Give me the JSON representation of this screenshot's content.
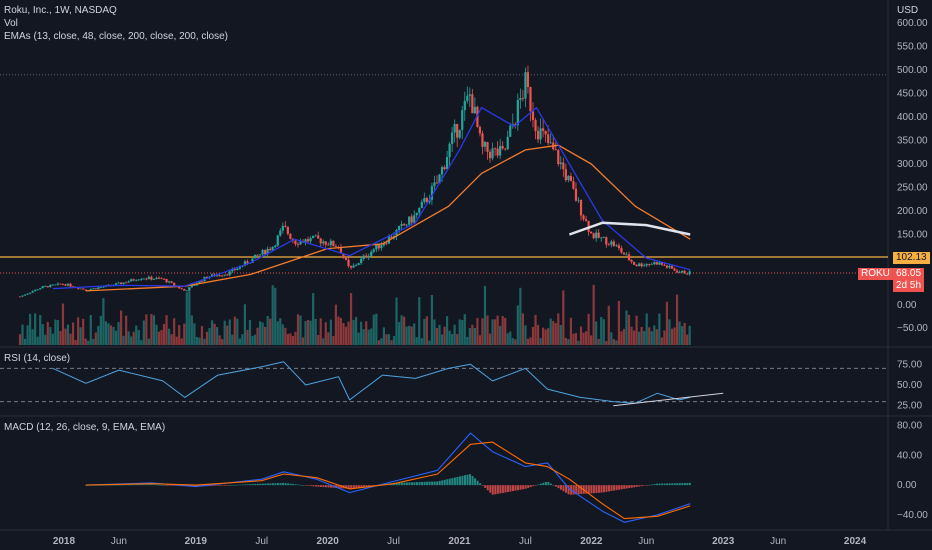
{
  "header": {
    "title": "Roku, Inc., 1W, NASDAQ",
    "volume_label": "Vol",
    "ema_label": "EMAs (13, close, 48, close, 200, close, 200, close)",
    "currency": "USD"
  },
  "rsi_label": "RSI (14, close)",
  "macd_label": "MACD (12, 26, close, 9, EMA, EMA)",
  "price_tags": {
    "level": "102.13",
    "symbol": "ROKU",
    "last": "68.05",
    "countdown": "2d 5h"
  },
  "colors": {
    "background": "#131722",
    "up": "#26a69a",
    "down": "#ef5350",
    "ema_fast": "#2a39e8",
    "ema_slow": "#f57c2c",
    "ema_long": "#e0e3eb",
    "horizontal_line": "#f5b041",
    "rsi": "#4fa3e0",
    "macd": "#2962ff",
    "signal": "#ff6d00"
  },
  "chart_data": [
    {
      "type": "candlestick",
      "pane": "price",
      "y_ticks": [
        600,
        550,
        500,
        450,
        400,
        350,
        300,
        250,
        200,
        150,
        100,
        50
      ],
      "y_tick_labels": [
        "600.00",
        "550.00",
        "500.00",
        "450.00",
        "400.00",
        "350.00",
        "300.00",
        "250.00",
        "200.00",
        "150.00",
        "100.00",
        "50.00"
      ],
      "ylim": [
        20,
        620
      ],
      "x_labels": [
        "2018",
        "Jun",
        "2019",
        "Jul",
        "2020",
        "Jul",
        "2021",
        "Jul",
        "2022",
        "Jun",
        "2023",
        "Jun",
        "2024"
      ],
      "x_label_dates": [
        "2018-01",
        "2018-06",
        "2019-01",
        "2019-07",
        "2020-01",
        "2020-07",
        "2021-01",
        "2021-07",
        "2022-01",
        "2022-06",
        "2023-01",
        "2023-06",
        "2024-01"
      ],
      "x_range": [
        "2017-09",
        "2024-04"
      ],
      "series_close_points": [
        {
          "date": "2017-09",
          "value": 18
        },
        {
          "date": "2017-11",
          "value": 38
        },
        {
          "date": "2018-01",
          "value": 45
        },
        {
          "date": "2018-03",
          "value": 32
        },
        {
          "date": "2018-06",
          "value": 45
        },
        {
          "date": "2018-08",
          "value": 58
        },
        {
          "date": "2018-10",
          "value": 55
        },
        {
          "date": "2018-12",
          "value": 30
        },
        {
          "date": "2019-02",
          "value": 60
        },
        {
          "date": "2019-04",
          "value": 68
        },
        {
          "date": "2019-06",
          "value": 95
        },
        {
          "date": "2019-08",
          "value": 125
        },
        {
          "date": "2019-09",
          "value": 165
        },
        {
          "date": "2019-10",
          "value": 135
        },
        {
          "date": "2019-12",
          "value": 140
        },
        {
          "date": "2020-02",
          "value": 125
        },
        {
          "date": "2020-03",
          "value": 75
        },
        {
          "date": "2020-05",
          "value": 115
        },
        {
          "date": "2020-07",
          "value": 150
        },
        {
          "date": "2020-09",
          "value": 190
        },
        {
          "date": "2020-11",
          "value": 260
        },
        {
          "date": "2020-12",
          "value": 330
        },
        {
          "date": "2021-02",
          "value": 450
        },
        {
          "date": "2021-03",
          "value": 330
        },
        {
          "date": "2021-05",
          "value": 320
        },
        {
          "date": "2021-07",
          "value": 470
        },
        {
          "date": "2021-08",
          "value": 380
        },
        {
          "date": "2021-10",
          "value": 310
        },
        {
          "date": "2021-11",
          "value": 260
        },
        {
          "date": "2022-01",
          "value": 150
        },
        {
          "date": "2022-03",
          "value": 130
        },
        {
          "date": "2022-05",
          "value": 85
        },
        {
          "date": "2022-07",
          "value": 90
        },
        {
          "date": "2022-09",
          "value": 70
        },
        {
          "date": "2022-10",
          "value": 68.05
        }
      ],
      "ema_13_points": [
        {
          "date": "2017-12",
          "value": 35
        },
        {
          "date": "2018-06",
          "value": 42
        },
        {
          "date": "2018-12",
          "value": 40
        },
        {
          "date": "2019-06",
          "value": 90
        },
        {
          "date": "2019-10",
          "value": 140
        },
        {
          "date": "2020-03",
          "value": 105
        },
        {
          "date": "2020-09",
          "value": 175
        },
        {
          "date": "2021-01",
          "value": 330
        },
        {
          "date": "2021-03",
          "value": 420
        },
        {
          "date": "2021-06",
          "value": 380
        },
        {
          "date": "2021-08",
          "value": 420
        },
        {
          "date": "2021-11",
          "value": 300
        },
        {
          "date": "2022-02",
          "value": 180
        },
        {
          "date": "2022-06",
          "value": 100
        },
        {
          "date": "2022-10",
          "value": 75
        }
      ],
      "ema_48_points": [
        {
          "date": "2018-03",
          "value": 30
        },
        {
          "date": "2018-12",
          "value": 40
        },
        {
          "date": "2019-06",
          "value": 65
        },
        {
          "date": "2020-01",
          "value": 120
        },
        {
          "date": "2020-06",
          "value": 130
        },
        {
          "date": "2020-12",
          "value": 210
        },
        {
          "date": "2021-03",
          "value": 280
        },
        {
          "date": "2021-07",
          "value": 330
        },
        {
          "date": "2021-10",
          "value": 340
        },
        {
          "date": "2022-01",
          "value": 300
        },
        {
          "date": "2022-05",
          "value": 210
        },
        {
          "date": "2022-10",
          "value": 140
        }
      ],
      "ema_200_points": [
        {
          "date": "2021-11",
          "value": 150
        },
        {
          "date": "2022-02",
          "value": 175
        },
        {
          "date": "2022-06",
          "value": 170
        },
        {
          "date": "2022-10",
          "value": 150
        }
      ],
      "horizontal_level": 102.13,
      "last_price": 68.05
    },
    {
      "type": "bar",
      "pane": "volume",
      "y_tick_labels": [
        "0.00",
        "−50.00"
      ],
      "description_series": "weekly volume bars colored by candle direction"
    },
    {
      "type": "line",
      "pane": "rsi",
      "title": "RSI (14, close)",
      "y_tick_labels": [
        "75.00",
        "50.00",
        "25.00"
      ],
      "ylim": [
        15,
        85
      ],
      "bands": [
        70,
        30
      ],
      "points": [
        {
          "date": "2017-12",
          "value": 70
        },
        {
          "date": "2018-03",
          "value": 52
        },
        {
          "date": "2018-06",
          "value": 68
        },
        {
          "date": "2018-10",
          "value": 55
        },
        {
          "date": "2018-12",
          "value": 35
        },
        {
          "date": "2019-03",
          "value": 62
        },
        {
          "date": "2019-07",
          "value": 72
        },
        {
          "date": "2019-09",
          "value": 78
        },
        {
          "date": "2019-11",
          "value": 50
        },
        {
          "date": "2020-02",
          "value": 60
        },
        {
          "date": "2020-03",
          "value": 32
        },
        {
          "date": "2020-06",
          "value": 62
        },
        {
          "date": "2020-09",
          "value": 58
        },
        {
          "date": "2020-12",
          "value": 70
        },
        {
          "date": "2021-02",
          "value": 75
        },
        {
          "date": "2021-04",
          "value": 55
        },
        {
          "date": "2021-07",
          "value": 70
        },
        {
          "date": "2021-09",
          "value": 45
        },
        {
          "date": "2021-12",
          "value": 35
        },
        {
          "date": "2022-03",
          "value": 30
        },
        {
          "date": "2022-05",
          "value": 28
        },
        {
          "date": "2022-07",
          "value": 40
        },
        {
          "date": "2022-09",
          "value": 32
        },
        {
          "date": "2022-10",
          "value": 35
        }
      ],
      "trendline": [
        {
          "date": "2022-03",
          "value": 25
        },
        {
          "date": "2023-01",
          "value": 40
        }
      ]
    },
    {
      "type": "line",
      "pane": "macd",
      "title": "MACD (12, 26, close, 9, EMA, EMA)",
      "y_tick_labels": [
        "80.00",
        "40.00",
        "0.00",
        "−40.00"
      ],
      "ylim": [
        -55,
        85
      ],
      "macd_points": [
        {
          "date": "2018-03",
          "value": 0
        },
        {
          "date": "2018-09",
          "value": 3
        },
        {
          "date": "2019-01",
          "value": -2
        },
        {
          "date": "2019-07",
          "value": 8
        },
        {
          "date": "2019-09",
          "value": 18
        },
        {
          "date": "2019-12",
          "value": 8
        },
        {
          "date": "2020-03",
          "value": -10
        },
        {
          "date": "2020-07",
          "value": 5
        },
        {
          "date": "2020-11",
          "value": 20
        },
        {
          "date": "2021-02",
          "value": 70
        },
        {
          "date": "2021-04",
          "value": 45
        },
        {
          "date": "2021-07",
          "value": 25
        },
        {
          "date": "2021-09",
          "value": 30
        },
        {
          "date": "2021-11",
          "value": -5
        },
        {
          "date": "2022-02",
          "value": -35
        },
        {
          "date": "2022-04",
          "value": -50
        },
        {
          "date": "2022-07",
          "value": -40
        },
        {
          "date": "2022-10",
          "value": -25
        }
      ],
      "signal_points": [
        {
          "date": "2018-03",
          "value": 0
        },
        {
          "date": "2018-09",
          "value": 2
        },
        {
          "date": "2019-01",
          "value": 0
        },
        {
          "date": "2019-07",
          "value": 6
        },
        {
          "date": "2019-09",
          "value": 15
        },
        {
          "date": "2019-12",
          "value": 10
        },
        {
          "date": "2020-03",
          "value": -5
        },
        {
          "date": "2020-07",
          "value": 2
        },
        {
          "date": "2020-11",
          "value": 15
        },
        {
          "date": "2021-02",
          "value": 55
        },
        {
          "date": "2021-04",
          "value": 58
        },
        {
          "date": "2021-07",
          "value": 30
        },
        {
          "date": "2021-09",
          "value": 25
        },
        {
          "date": "2021-11",
          "value": 8
        },
        {
          "date": "2022-02",
          "value": -25
        },
        {
          "date": "2022-04",
          "value": -45
        },
        {
          "date": "2022-07",
          "value": -42
        },
        {
          "date": "2022-10",
          "value": -28
        }
      ]
    }
  ]
}
